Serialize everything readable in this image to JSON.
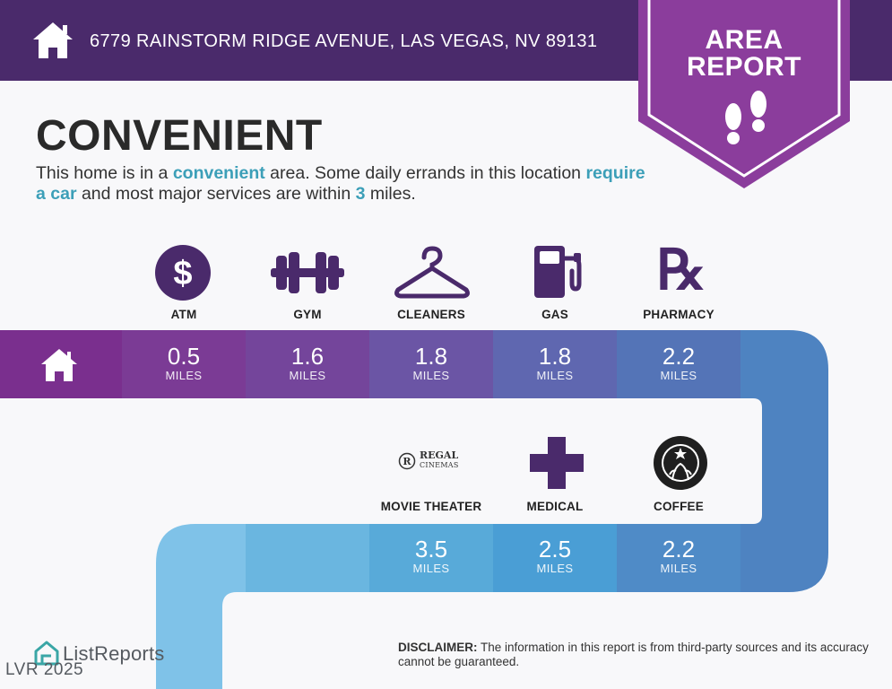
{
  "header": {
    "address": "6779 RAINSTORM RIDGE AVENUE, LAS VEGAS, NV 89131",
    "badge_line1": "AREA",
    "badge_line2": "REPORT"
  },
  "main": {
    "title": "CONVENIENT",
    "desc_part1": "This home is in a ",
    "desc_hl1": "convenient",
    "desc_part2": " area. Some daily errands in this location ",
    "desc_hl2": "require a car",
    "desc_part3": " and most major services are within ",
    "desc_hl3": "3",
    "desc_part4": " miles."
  },
  "row1": [
    {
      "label": "ATM",
      "value": "0.5",
      "unit": "MILES",
      "icon": "dollar-icon"
    },
    {
      "label": "GYM",
      "value": "1.6",
      "unit": "MILES",
      "icon": "dumbbell-icon"
    },
    {
      "label": "CLEANERS",
      "value": "1.8",
      "unit": "MILES",
      "icon": "hanger-icon"
    },
    {
      "label": "GAS",
      "value": "1.8",
      "unit": "MILES",
      "icon": "gas-pump-icon"
    },
    {
      "label": "PHARMACY",
      "value": "2.2",
      "unit": "MILES",
      "icon": "rx-icon"
    }
  ],
  "row2": [
    {
      "label": "MOVIE THEATER",
      "value": "3.5",
      "unit": "MILES",
      "icon": "regal-logo"
    },
    {
      "label": "MEDICAL",
      "value": "2.5",
      "unit": "MILES",
      "icon": "medical-cross-icon"
    },
    {
      "label": "COFFEE",
      "value": "2.2",
      "unit": "MILES",
      "icon": "starbucks-logo"
    }
  ],
  "logos": {
    "regal_line1": "REGAL",
    "regal_line2": "CINEMAS"
  },
  "rx_glyph": "℞",
  "footer": {
    "brand": "ListReports",
    "mls": "LVR 2025",
    "disclaimer_label": "DISCLAIMER:",
    "disclaimer_text": " The information in this report is from third-party sources and its accuracy cannot be guaranteed."
  },
  "colors": {
    "header": "#4a2a6b",
    "badge": "#8b3d9c",
    "accent_text": "#3c9fb8",
    "icon": "#4a2a6b"
  }
}
